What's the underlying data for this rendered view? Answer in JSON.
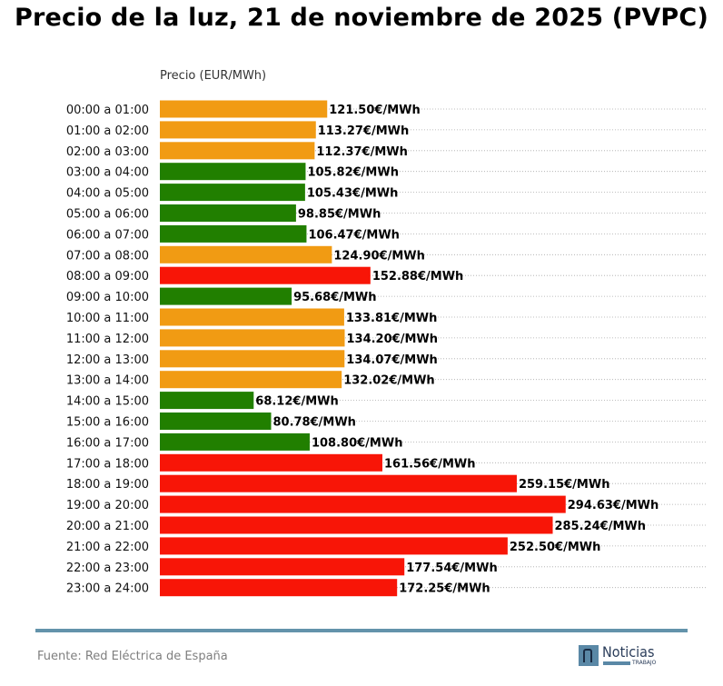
{
  "chart_data": {
    "type": "bar",
    "orientation": "horizontal",
    "title": "Precio de la luz, 21 de noviembre de 2025 (PVPC)",
    "xlabel": "Precio (EUR/MWh)",
    "ylabel": "",
    "grid": true,
    "xlim": [
      0,
      397
    ],
    "value_suffix": "€/MWh",
    "categories": [
      "00:00 a 01:00",
      "01:00 a 02:00",
      "02:00 a 03:00",
      "03:00 a 04:00",
      "04:00 a 05:00",
      "05:00 a 06:00",
      "06:00 a 07:00",
      "07:00 a 08:00",
      "08:00 a 09:00",
      "09:00 a 10:00",
      "10:00 a 11:00",
      "11:00 a 12:00",
      "12:00 a 13:00",
      "13:00 a 14:00",
      "14:00 a 15:00",
      "15:00 a 16:00",
      "16:00 a 17:00",
      "17:00 a 18:00",
      "18:00 a 19:00",
      "19:00 a 20:00",
      "20:00 a 21:00",
      "21:00 a 22:00",
      "22:00 a 23:00",
      "23:00 a 24:00"
    ],
    "values": [
      121.5,
      113.27,
      112.37,
      105.82,
      105.43,
      98.85,
      106.47,
      124.9,
      152.88,
      95.68,
      133.81,
      134.2,
      134.07,
      132.02,
      68.12,
      80.78,
      108.8,
      161.56,
      259.15,
      294.63,
      285.24,
      252.5,
      177.54,
      172.25
    ],
    "levels": [
      "medium",
      "medium",
      "medium",
      "low",
      "low",
      "low",
      "low",
      "medium",
      "high",
      "low",
      "medium",
      "medium",
      "medium",
      "medium",
      "low",
      "low",
      "low",
      "high",
      "high",
      "high",
      "high",
      "high",
      "high",
      "high"
    ],
    "level_colors": {
      "low": "#217f00",
      "medium": "#f19b13",
      "high": "#f81507"
    }
  },
  "footer": {
    "source": "Fuente: Red Eléctrica de España",
    "logo_word": "Noticias",
    "logo_sub": "TRABAJO",
    "rule_color": "#6393ab"
  }
}
